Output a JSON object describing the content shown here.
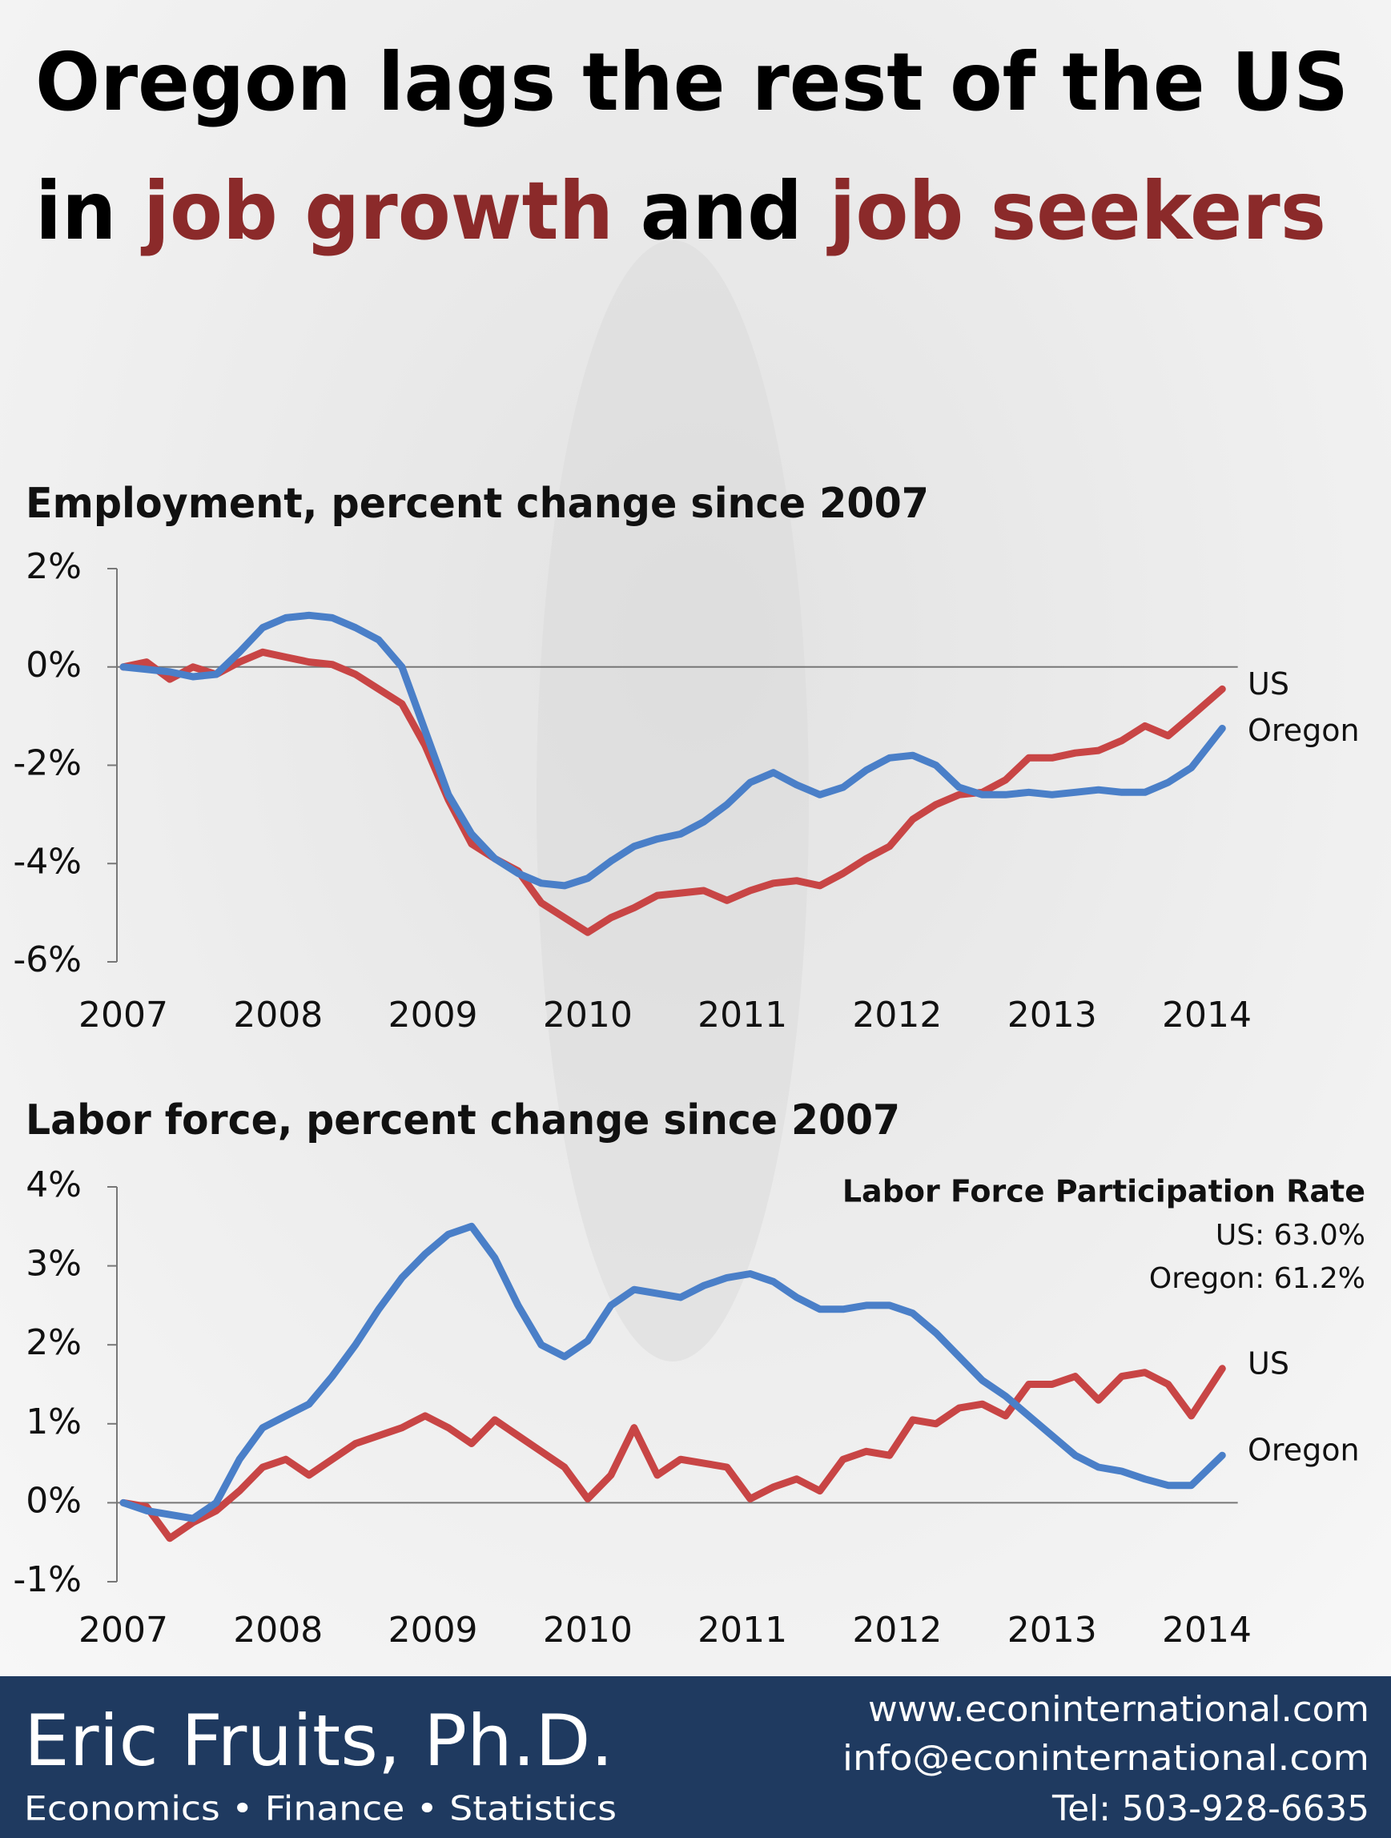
{
  "header": {
    "title": [
      [
        {
          "text": "Oregon lags the rest of the US",
          "color": "#000000"
        }
      ],
      [
        {
          "text": "in ",
          "color": "#000000"
        },
        {
          "text": "job growth",
          "color": "#8b2a2a"
        },
        {
          "text": " and ",
          "color": "#000000"
        },
        {
          "text": "job seekers",
          "color": "#8b2a2a"
        }
      ]
    ]
  },
  "chart_data": [
    {
      "type": "line",
      "title": "Employment, percent change since 2007",
      "x": [
        2007.0,
        2007.15,
        2007.3,
        2007.45,
        2007.6,
        2007.75,
        2007.9,
        2008.05,
        2008.2,
        2008.35,
        2008.5,
        2008.65,
        2008.8,
        2008.95,
        2009.1,
        2009.25,
        2009.4,
        2009.55,
        2009.7,
        2009.85,
        2010.0,
        2010.15,
        2010.3,
        2010.45,
        2010.6,
        2010.75,
        2010.9,
        2011.05,
        2011.2,
        2011.35,
        2011.5,
        2011.65,
        2011.8,
        2011.95,
        2012.1,
        2012.25,
        2012.4,
        2012.55,
        2012.7,
        2012.85,
        2013.0,
        2013.15,
        2013.3,
        2013.45,
        2013.6,
        2013.75,
        2013.9,
        2014.1
      ],
      "series": [
        {
          "name": "US",
          "color": "#c84545",
          "values": [
            0,
            0.1,
            -0.25,
            0,
            -0.15,
            0.1,
            0.3,
            0.2,
            0.1,
            0.05,
            -0.15,
            -0.45,
            -0.75,
            -1.6,
            -2.7,
            -3.6,
            -3.9,
            -4.15,
            -4.8,
            -5.1,
            -5.4,
            -5.1,
            -4.9,
            -4.65,
            -4.6,
            -4.55,
            -4.75,
            -4.55,
            -4.4,
            -4.35,
            -4.45,
            -4.2,
            -3.9,
            -3.65,
            -3.1,
            -2.8,
            -2.6,
            -2.55,
            -2.3,
            -1.85,
            -1.85,
            -1.75,
            -1.7,
            -1.5,
            -1.2,
            -1.4,
            -1.0,
            -0.45
          ]
        },
        {
          "name": "Oregon",
          "color": "#4a7fc8",
          "values": [
            0,
            -0.05,
            -0.1,
            -0.2,
            -0.15,
            0.3,
            0.8,
            1.0,
            1.05,
            1.0,
            0.8,
            0.55,
            0.0,
            -1.3,
            -2.6,
            -3.4,
            -3.9,
            -4.2,
            -4.4,
            -4.45,
            -4.3,
            -3.95,
            -3.65,
            -3.5,
            -3.4,
            -3.15,
            -2.8,
            -2.35,
            -2.15,
            -2.4,
            -2.6,
            -2.45,
            -2.1,
            -1.85,
            -1.8,
            -2.0,
            -2.45,
            -2.6,
            -2.6,
            -2.55,
            -2.6,
            -2.55,
            -2.5,
            -2.55,
            -2.55,
            -2.35,
            -2.05,
            -1.25
          ]
        }
      ],
      "xlim": [
        2007,
        2014.2
      ],
      "xticks": [
        2007,
        2008,
        2009,
        2010,
        2011,
        2012,
        2013,
        2014
      ],
      "ylim": [
        -6,
        2
      ],
      "yticks": [
        {
          "value": -6,
          "label": "-6%"
        },
        {
          "value": -4,
          "label": "-4%"
        },
        {
          "value": -2,
          "label": "-2%"
        },
        {
          "value": 0,
          "label": "0%"
        },
        {
          "value": 2,
          "label": "2%"
        }
      ]
    },
    {
      "type": "line",
      "title": "Labor force, percent change since 2007",
      "annotations": [
        "Labor Force Participation Rate",
        "US: 63.0%",
        "Oregon: 61.2%"
      ],
      "x": [
        2007.0,
        2007.15,
        2007.3,
        2007.45,
        2007.6,
        2007.75,
        2007.9,
        2008.05,
        2008.2,
        2008.35,
        2008.5,
        2008.65,
        2008.8,
        2008.95,
        2009.1,
        2009.25,
        2009.4,
        2009.55,
        2009.7,
        2009.85,
        2010.0,
        2010.15,
        2010.3,
        2010.45,
        2010.6,
        2010.75,
        2010.9,
        2011.05,
        2011.2,
        2011.35,
        2011.5,
        2011.65,
        2011.8,
        2011.95,
        2012.1,
        2012.25,
        2012.4,
        2012.55,
        2012.7,
        2012.85,
        2013.0,
        2013.15,
        2013.3,
        2013.45,
        2013.6,
        2013.75,
        2013.9,
        2014.1
      ],
      "series": [
        {
          "name": "US",
          "color": "#c84545",
          "values": [
            0,
            -0.05,
            -0.45,
            -0.25,
            -0.1,
            0.15,
            0.45,
            0.55,
            0.35,
            0.55,
            0.75,
            0.85,
            0.95,
            1.1,
            0.95,
            0.75,
            1.05,
            0.85,
            0.65,
            0.45,
            0.05,
            0.35,
            0.95,
            0.35,
            0.55,
            0.5,
            0.45,
            0.05,
            0.2,
            0.3,
            0.15,
            0.55,
            0.65,
            0.6,
            1.05,
            1.0,
            1.2,
            1.25,
            1.1,
            1.5,
            1.5,
            1.6,
            1.3,
            1.6,
            1.65,
            1.5,
            1.1,
            1.7
          ]
        },
        {
          "name": "Oregon",
          "color": "#4a7fc8",
          "values": [
            0,
            -0.1,
            -0.15,
            -0.2,
            0,
            0.55,
            0.95,
            1.1,
            1.25,
            1.6,
            2.0,
            2.45,
            2.85,
            3.15,
            3.4,
            3.5,
            3.1,
            2.5,
            2.0,
            1.85,
            2.05,
            2.5,
            2.7,
            2.65,
            2.6,
            2.75,
            2.85,
            2.9,
            2.8,
            2.6,
            2.45,
            2.45,
            2.5,
            2.5,
            2.4,
            2.15,
            1.85,
            1.55,
            1.35,
            1.1,
            0.85,
            0.6,
            0.45,
            0.4,
            0.3,
            0.22,
            0.22,
            0.6
          ]
        }
      ],
      "xlim": [
        2007,
        2014.2
      ],
      "xticks": [
        2007,
        2008,
        2009,
        2010,
        2011,
        2012,
        2013,
        2014
      ],
      "ylim": [
        -1,
        4
      ],
      "yticks": [
        {
          "value": -1,
          "label": "-1%"
        },
        {
          "value": 0,
          "label": "0%"
        },
        {
          "value": 1,
          "label": "1%"
        },
        {
          "value": 2,
          "label": "2%"
        },
        {
          "value": 3,
          "label": "3%"
        },
        {
          "value": 4,
          "label": "4%"
        }
      ]
    }
  ],
  "footer": {
    "name": "Eric Fruits, Ph.D.",
    "tagline": "Economics • Finance • Statistics",
    "contact": [
      "www.econinternational.com",
      "info@econinternational.com",
      "Tel: 503-928-6635"
    ]
  }
}
